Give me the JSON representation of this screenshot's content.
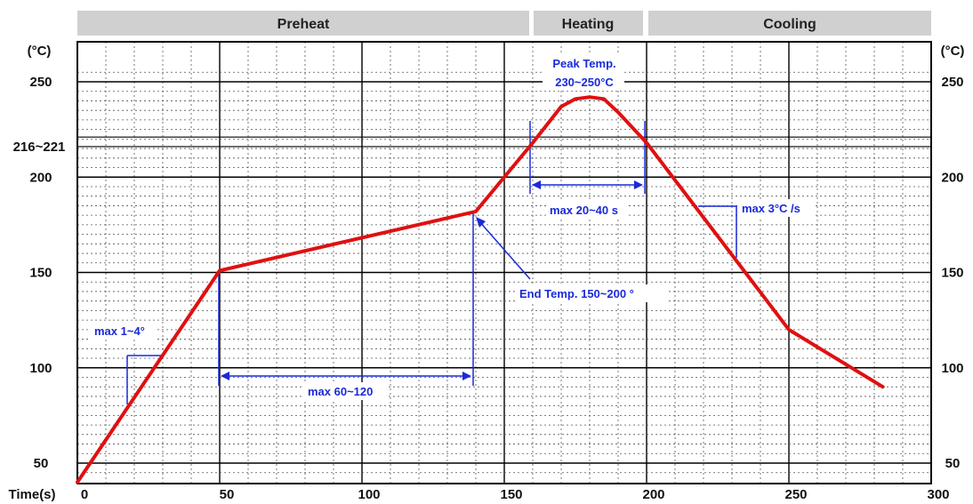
{
  "chart_data": {
    "type": "line",
    "xlabel": "Time(s)",
    "ylabel_left": "(°C)",
    "ylabel_right": "(°C)",
    "xlim": [
      0,
      300
    ],
    "ylim": [
      40,
      250
    ],
    "x_ticks": [
      0,
      50,
      100,
      150,
      200,
      250,
      300
    ],
    "x_tick_labels": [
      "0",
      "50",
      "100",
      "150",
      "200",
      "250",
      "300"
    ],
    "y_ticks": [
      50,
      100,
      150,
      200,
      250
    ],
    "y_tick_labels": [
      "50",
      "100",
      "150",
      "200",
      "250"
    ],
    "extra_y_tick": {
      "value": 218.5,
      "label": "216~221"
    },
    "grid": true,
    "phases": [
      {
        "label": "Preheat",
        "x_start": 0,
        "x_end": 160
      },
      {
        "label": "Heating",
        "x_start": 160,
        "x_end": 200
      },
      {
        "label": "Cooling",
        "x_start": 200,
        "x_end": 300
      }
    ],
    "series": [
      {
        "color": "#e01010",
        "points": [
          [
            0,
            40
          ],
          [
            50,
            151
          ],
          [
            140,
            182
          ],
          [
            160,
            218
          ],
          [
            170,
            237
          ],
          [
            175,
            241
          ],
          [
            180,
            242
          ],
          [
            185,
            241
          ],
          [
            190,
            234
          ],
          [
            200,
            218
          ],
          [
            250,
            120
          ],
          [
            283,
            90
          ]
        ]
      }
    ],
    "annotations": [
      {
        "id": "peak",
        "text_line1": "Peak Temp.",
        "text_line2": "230~250°C"
      },
      {
        "id": "heat-window",
        "text": "max 20~40 s"
      },
      {
        "id": "cool-rate",
        "text": "max 3°C /s"
      },
      {
        "id": "end-temp",
        "text": "End Temp.  150~200 °"
      },
      {
        "id": "preheat-window",
        "text": "max 60~120"
      },
      {
        "id": "ramp-rate",
        "text": "max 1~4°"
      }
    ],
    "colors": {
      "curve": "#e01010",
      "annotation": "#1a2ad8",
      "phase_bar": "#d0d0d0"
    }
  }
}
